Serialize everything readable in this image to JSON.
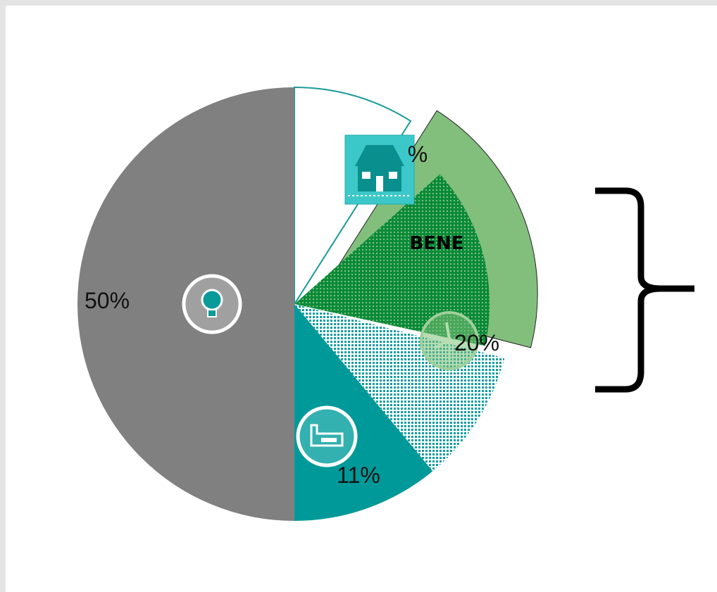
{
  "chart_data": {
    "type": "pie",
    "title": "",
    "start_angle_deg": 0,
    "direction": "clockwise",
    "slices": [
      {
        "value": 9,
        "label": "%",
        "icon": "house-icon",
        "color": "#ffffff",
        "border": "#1a9a9a"
      },
      {
        "value": 20,
        "label": "20%",
        "icon": "wind-turbine-icon",
        "color": "#82bf7d",
        "pattern": "dots-dark-green",
        "exploded": true,
        "callout": "BENE"
      },
      {
        "value": 10,
        "label": "",
        "icon": "",
        "color": "#ffffff",
        "pattern": "dots-teal"
      },
      {
        "value": 11,
        "label": "11%",
        "icon": "factory-icon",
        "color": "#009999"
      },
      {
        "value": 50,
        "label": "50%",
        "icon": "lightbulb-icon",
        "color": "#808080"
      }
    ],
    "grouping_bracket": {
      "spans_slices": [
        1
      ],
      "shape": "right-curly-brace"
    }
  }
}
